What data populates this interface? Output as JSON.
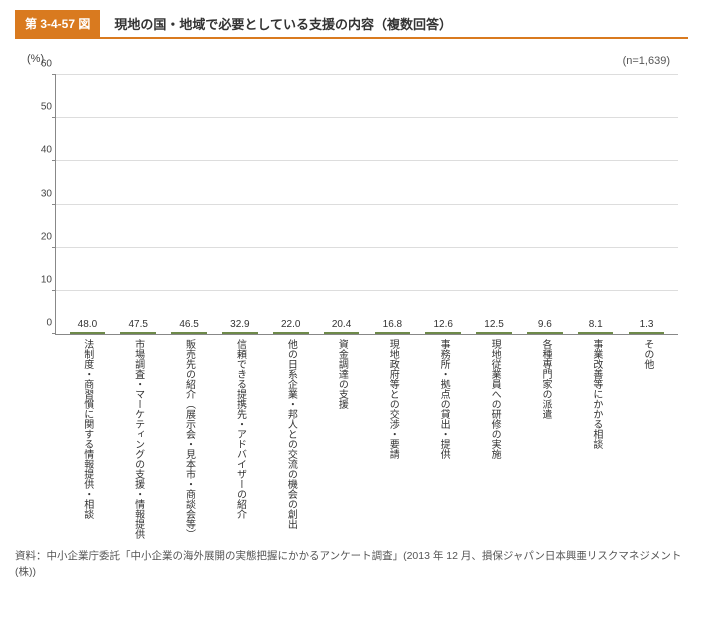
{
  "header": {
    "figure_number": "第 3-4-57 図",
    "title": "現地の国・地域で必要としている支援の内容（複数回答）"
  },
  "chart": {
    "type": "bar",
    "n_label": "(n=1,639)",
    "y_unit": "(%)",
    "ylim": [
      0,
      60
    ],
    "ytick_step": 10,
    "bar_color": "#d7e6bc",
    "bar_border": "#6e8a4a",
    "grid_color": "#dddddd",
    "axis_color": "#888888",
    "background_color": "#ffffff",
    "value_fontsize": 10,
    "label_fontsize": 10,
    "categories": [
      "法制度・商習慣に関する情報提供・相談",
      "市場調査・マーケティングの支援・情報提供",
      "販売先の紹介（展示会・見本市・商談会等）",
      "信頼できる提携先・アドバイザーの紹介",
      "他の日系企業・邦人との交流の機会の創出",
      "資金調達の支援",
      "現地政府等との交渉・要請",
      "事務所・拠点の貸出・提供",
      "現地従業員への研修の実施",
      "各種専門家の派遣",
      "事業改善等にかかる相談",
      "その他"
    ],
    "values": [
      48.0,
      47.5,
      46.5,
      32.9,
      22.0,
      20.4,
      16.8,
      12.6,
      12.5,
      9.6,
      8.1,
      1.3
    ]
  },
  "footnote": "資料：中小企業庁委託「中小企業の海外展開の実態把握にかかるアンケート調査」(2013 年 12 月、損保ジャパン日本興亜リスクマネジメント(株))"
}
